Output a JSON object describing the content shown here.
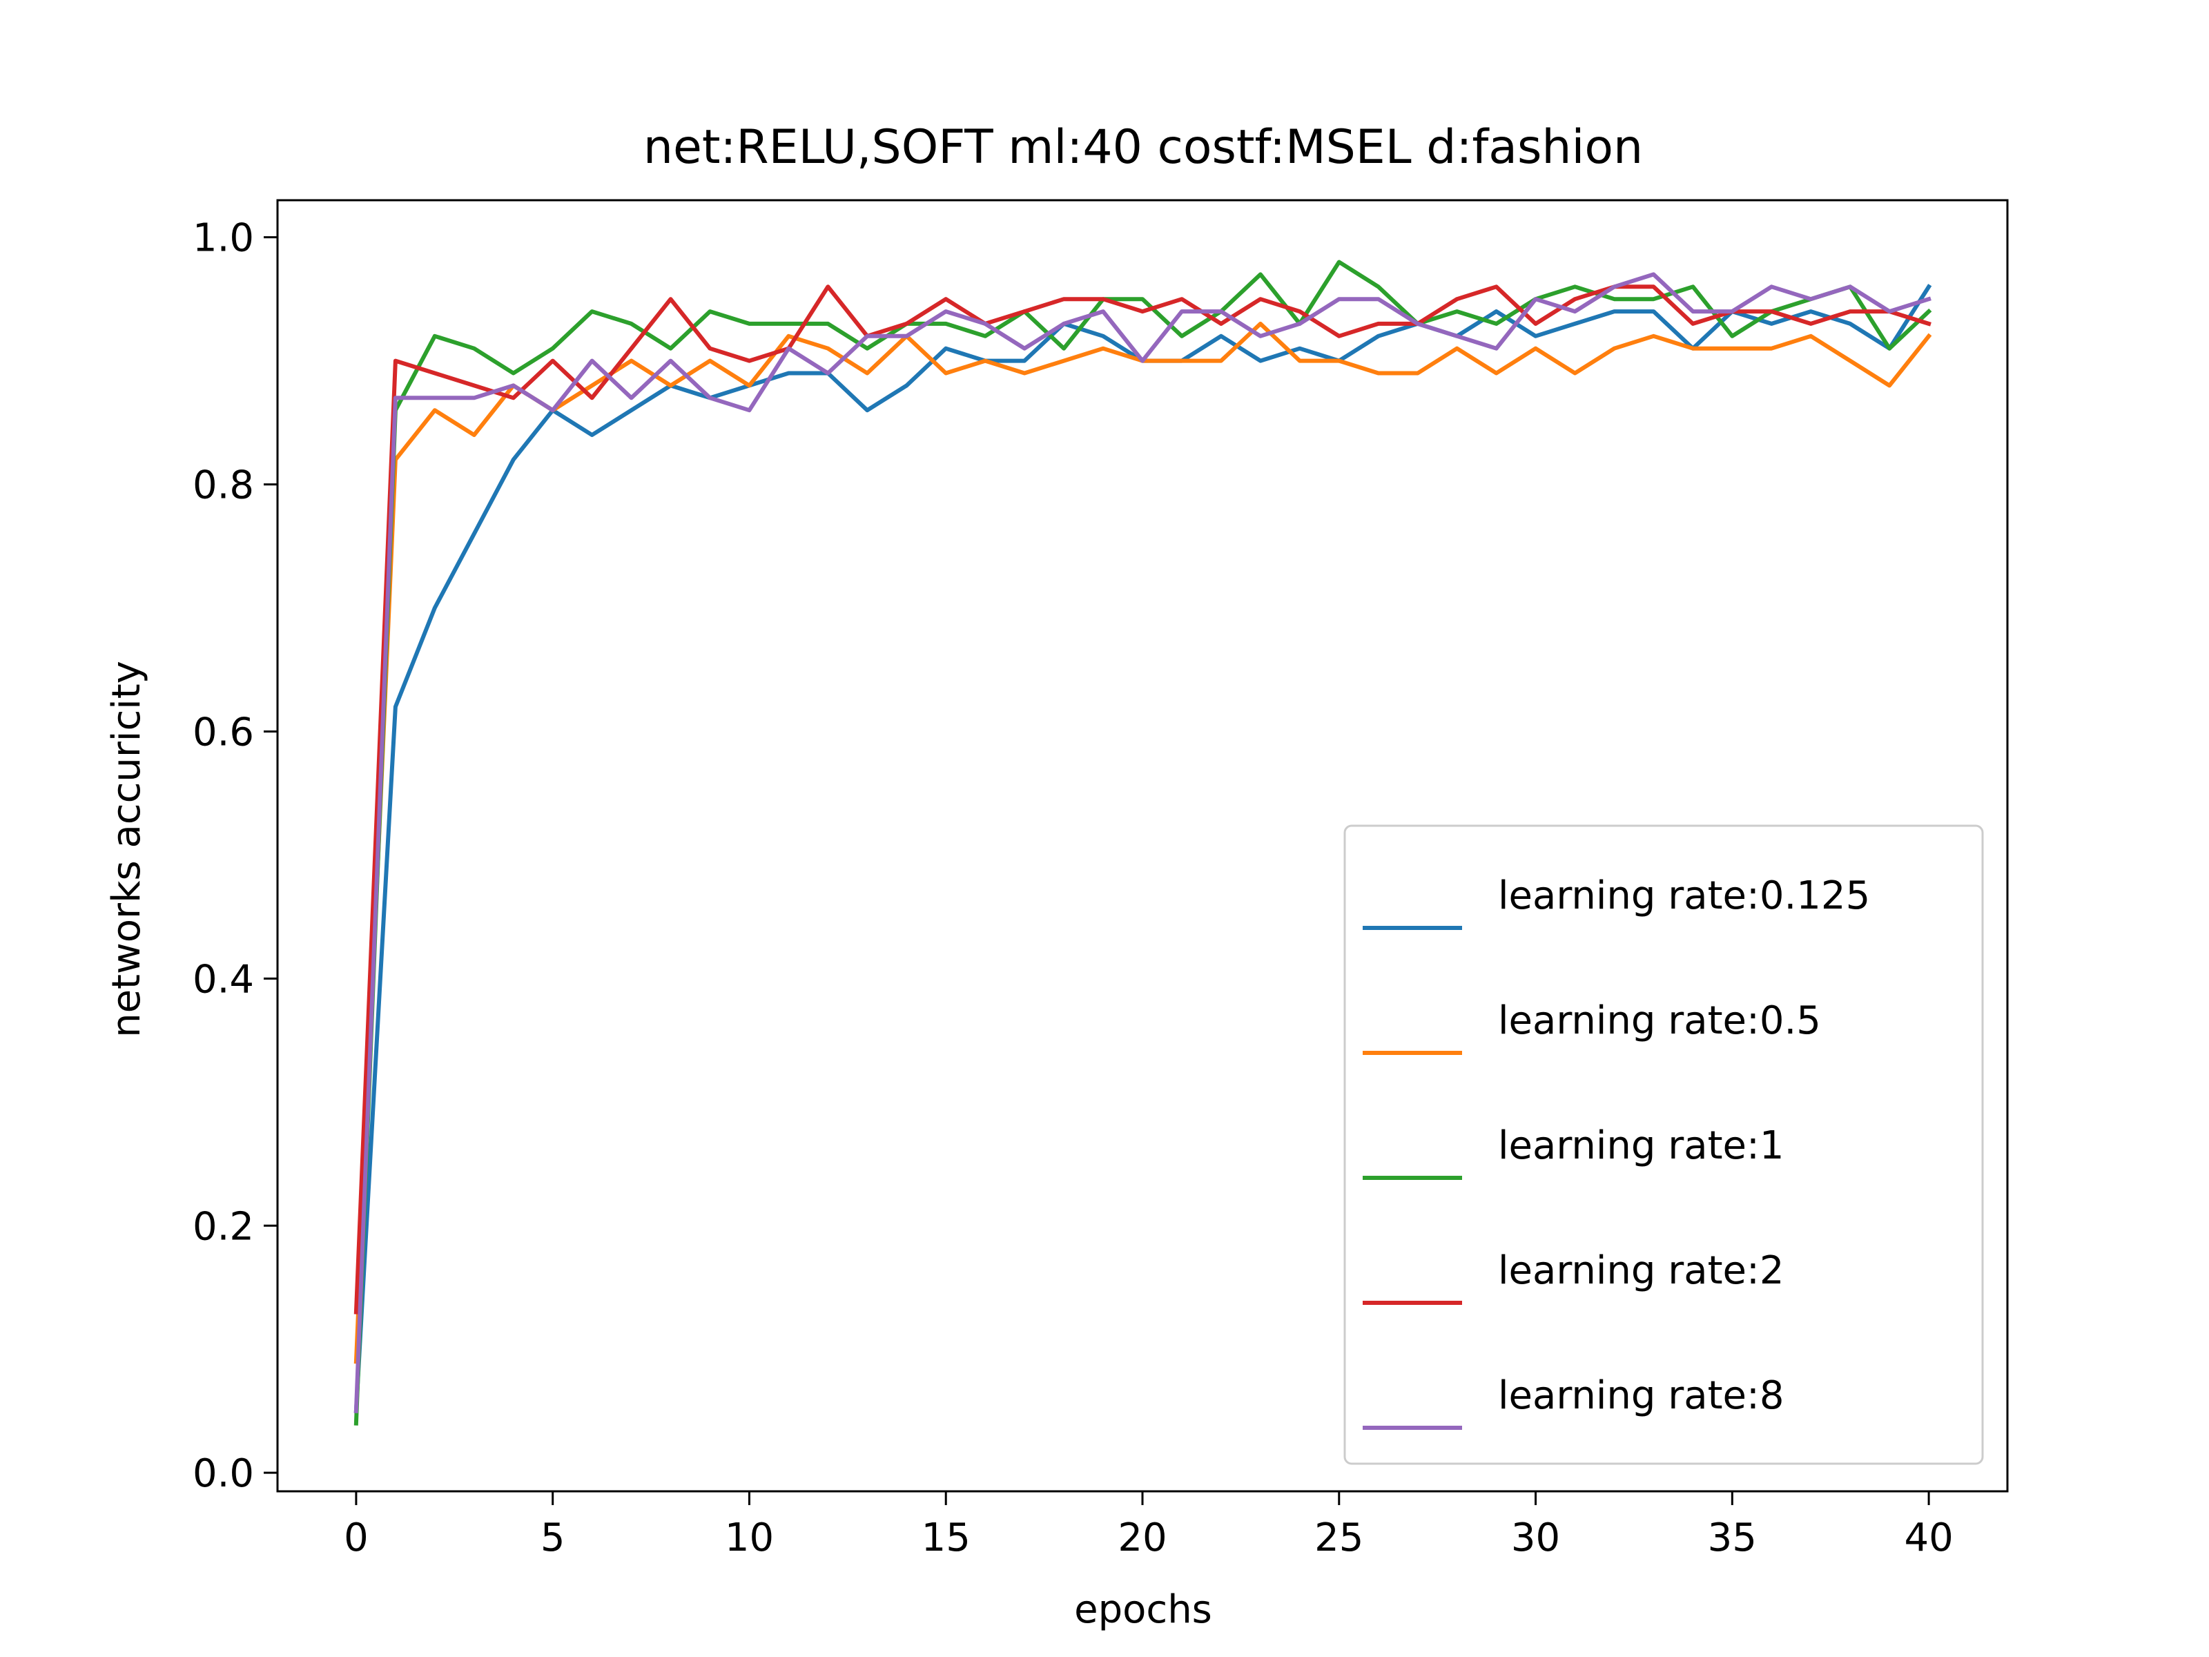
{
  "chart_data": {
    "type": "line",
    "title": "net:RELU,SOFT ml:40 costf:MSEL d:fashion",
    "xlabel": "epochs",
    "ylabel": "networks accuricity",
    "xlim": [
      -2,
      42
    ],
    "ylim": [
      -0.015,
      1.03
    ],
    "xticks": [
      0,
      5,
      10,
      15,
      20,
      25,
      30,
      35,
      40
    ],
    "xtick_labels": [
      "0",
      "5",
      "10",
      "15",
      "20",
      "25",
      "30",
      "35",
      "40"
    ],
    "yticks": [
      0.0,
      0.2,
      0.4,
      0.6,
      0.8,
      1.0
    ],
    "ytick_labels": [
      "0.0",
      "0.2",
      "0.4",
      "0.6",
      "0.8",
      "1.0"
    ],
    "grid": false,
    "legend_position": "lower-right",
    "x": [
      0,
      1,
      2,
      3,
      4,
      5,
      6,
      7,
      8,
      9,
      10,
      11,
      12,
      13,
      14,
      15,
      16,
      17,
      18,
      19,
      20,
      21,
      22,
      23,
      24,
      25,
      26,
      27,
      28,
      29,
      30,
      31,
      32,
      33,
      34,
      35,
      36,
      37,
      38,
      39,
      40
    ],
    "series": [
      {
        "name": "learning rate:0.125",
        "color": "#1f77b4",
        "values": [
          0.05,
          0.62,
          0.7,
          0.76,
          0.82,
          0.86,
          0.84,
          0.86,
          0.88,
          0.87,
          0.88,
          0.89,
          0.89,
          0.86,
          0.88,
          0.91,
          0.9,
          0.9,
          0.93,
          0.92,
          0.9,
          0.9,
          0.92,
          0.9,
          0.91,
          0.9,
          0.92,
          0.93,
          0.92,
          0.94,
          0.92,
          0.93,
          0.94,
          0.94,
          0.91,
          0.94,
          0.93,
          0.94,
          0.93,
          0.91,
          0.96
        ]
      },
      {
        "name": "learning rate:0.5",
        "color": "#ff7f0e",
        "values": [
          0.09,
          0.82,
          0.86,
          0.84,
          0.88,
          0.86,
          0.88,
          0.9,
          0.88,
          0.9,
          0.88,
          0.92,
          0.91,
          0.89,
          0.92,
          0.89,
          0.9,
          0.89,
          0.9,
          0.91,
          0.9,
          0.9,
          0.9,
          0.93,
          0.9,
          0.9,
          0.89,
          0.89,
          0.91,
          0.89,
          0.91,
          0.89,
          0.91,
          0.92,
          0.91,
          0.91,
          0.91,
          0.92,
          0.9,
          0.88,
          0.92
        ]
      },
      {
        "name": "learning rate:1",
        "color": "#2ca02c",
        "values": [
          0.04,
          0.86,
          0.92,
          0.91,
          0.89,
          0.91,
          0.94,
          0.93,
          0.91,
          0.94,
          0.93,
          0.93,
          0.93,
          0.91,
          0.93,
          0.93,
          0.92,
          0.94,
          0.91,
          0.95,
          0.95,
          0.92,
          0.94,
          0.97,
          0.93,
          0.98,
          0.96,
          0.93,
          0.94,
          0.93,
          0.95,
          0.96,
          0.95,
          0.95,
          0.96,
          0.92,
          0.94,
          0.95,
          0.96,
          0.91,
          0.94
        ]
      },
      {
        "name": "learning rate:2",
        "color": "#d62728",
        "values": [
          0.13,
          0.9,
          0.89,
          0.88,
          0.87,
          0.9,
          0.87,
          0.91,
          0.95,
          0.91,
          0.9,
          0.91,
          0.96,
          0.92,
          0.93,
          0.95,
          0.93,
          0.94,
          0.95,
          0.95,
          0.94,
          0.95,
          0.93,
          0.95,
          0.94,
          0.92,
          0.93,
          0.93,
          0.95,
          0.96,
          0.93,
          0.95,
          0.96,
          0.96,
          0.93,
          0.94,
          0.94,
          0.93,
          0.94,
          0.94,
          0.93
        ]
      },
      {
        "name": "learning rate:8",
        "color": "#9467bd",
        "values": [
          0.05,
          0.87,
          0.87,
          0.87,
          0.88,
          0.86,
          0.9,
          0.87,
          0.9,
          0.87,
          0.86,
          0.91,
          0.89,
          0.92,
          0.92,
          0.94,
          0.93,
          0.91,
          0.93,
          0.94,
          0.9,
          0.94,
          0.94,
          0.92,
          0.93,
          0.95,
          0.95,
          0.93,
          0.92,
          0.91,
          0.95,
          0.94,
          0.96,
          0.97,
          0.94,
          0.94,
          0.96,
          0.95,
          0.96,
          0.94,
          0.95
        ]
      }
    ]
  }
}
